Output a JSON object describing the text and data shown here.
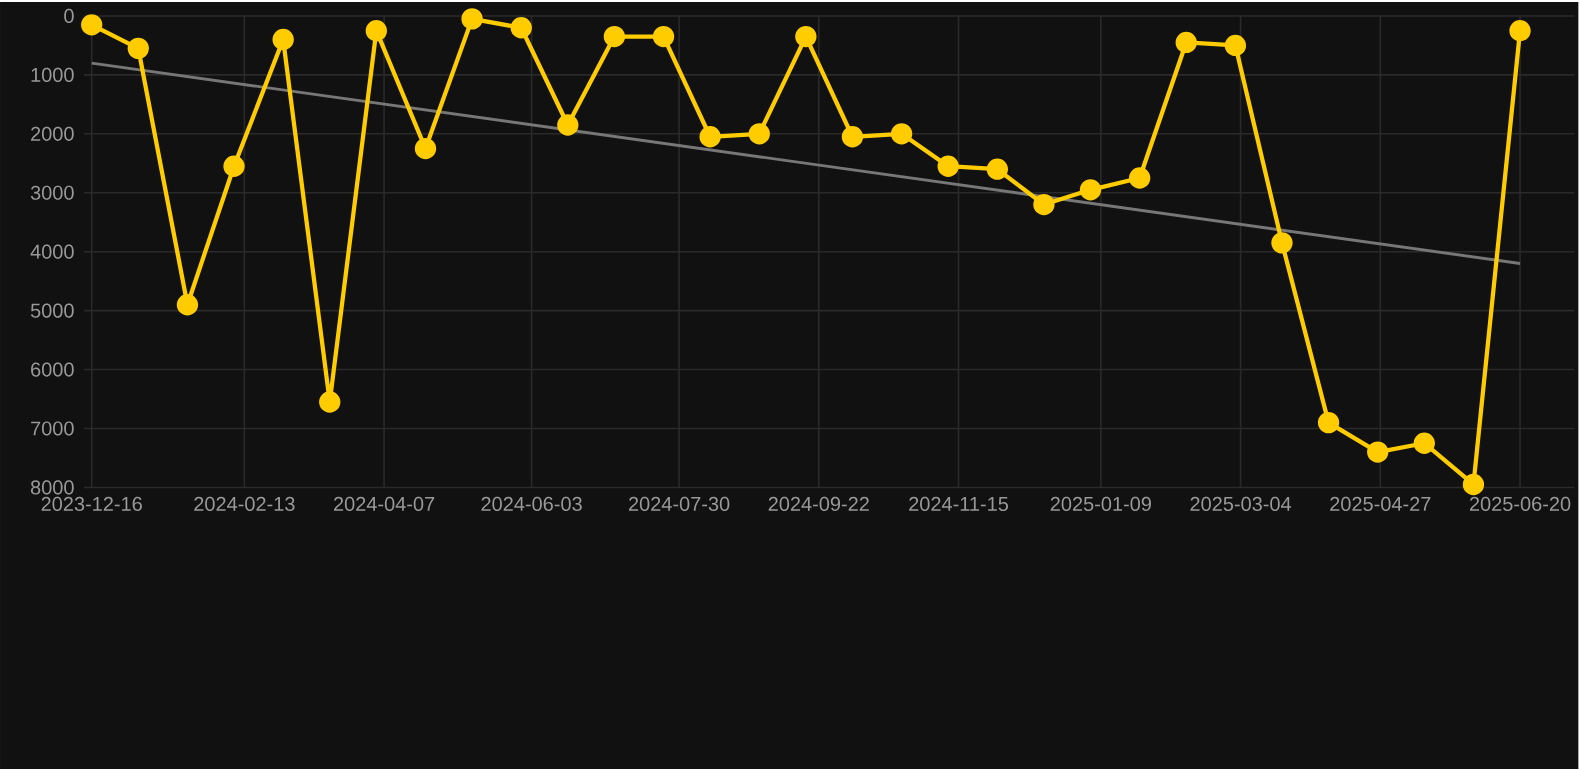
{
  "chart_data": {
    "type": "line",
    "x": [
      "2023-12-16",
      "2024-01-03",
      "2024-01-22",
      "2024-02-09",
      "2024-02-28",
      "2024-03-17",
      "2024-04-04",
      "2024-04-23",
      "2024-05-11",
      "2024-05-30",
      "2024-06-17",
      "2024-07-05",
      "2024-07-24",
      "2024-08-11",
      "2024-08-30",
      "2024-09-17",
      "2024-10-05",
      "2024-10-24",
      "2024-11-11",
      "2024-11-30",
      "2024-12-18",
      "2025-01-05",
      "2025-01-24",
      "2025-02-11",
      "2025-03-02",
      "2025-03-20",
      "2025-04-07",
      "2025-04-26",
      "2025-05-14",
      "2025-06-02",
      "2025-06-20"
    ],
    "series": [
      {
        "color": "#ffcc00",
        "marker": "circle",
        "values": [
          150,
          550,
          4900,
          2550,
          400,
          6550,
          250,
          2250,
          50,
          200,
          1850,
          350,
          350,
          2050,
          2000,
          350,
          2050,
          2000,
          2550,
          2600,
          3200,
          2950,
          2750,
          450,
          500,
          3850,
          6900,
          7400,
          7250,
          7950,
          250
        ]
      },
      {
        "color": "#777777",
        "marker": "none",
        "x": [
          "2023-12-16",
          "2025-06-20"
        ],
        "values": [
          800,
          4200
        ]
      }
    ],
    "xlim": [
      "2023-12-13",
      "2025-07-11"
    ],
    "ylim": [
      8000,
      0
    ],
    "xticks": [
      "2023-12-16",
      "2024-02-13",
      "2024-04-07",
      "2024-06-03",
      "2024-07-30",
      "2024-09-22",
      "2024-11-15",
      "2025-01-09",
      "2025-03-04",
      "2025-04-27",
      "2025-06-20"
    ],
    "yticks": [
      0,
      1000,
      2000,
      3000,
      4000,
      5000,
      6000,
      7000,
      8000
    ],
    "grid": true
  }
}
